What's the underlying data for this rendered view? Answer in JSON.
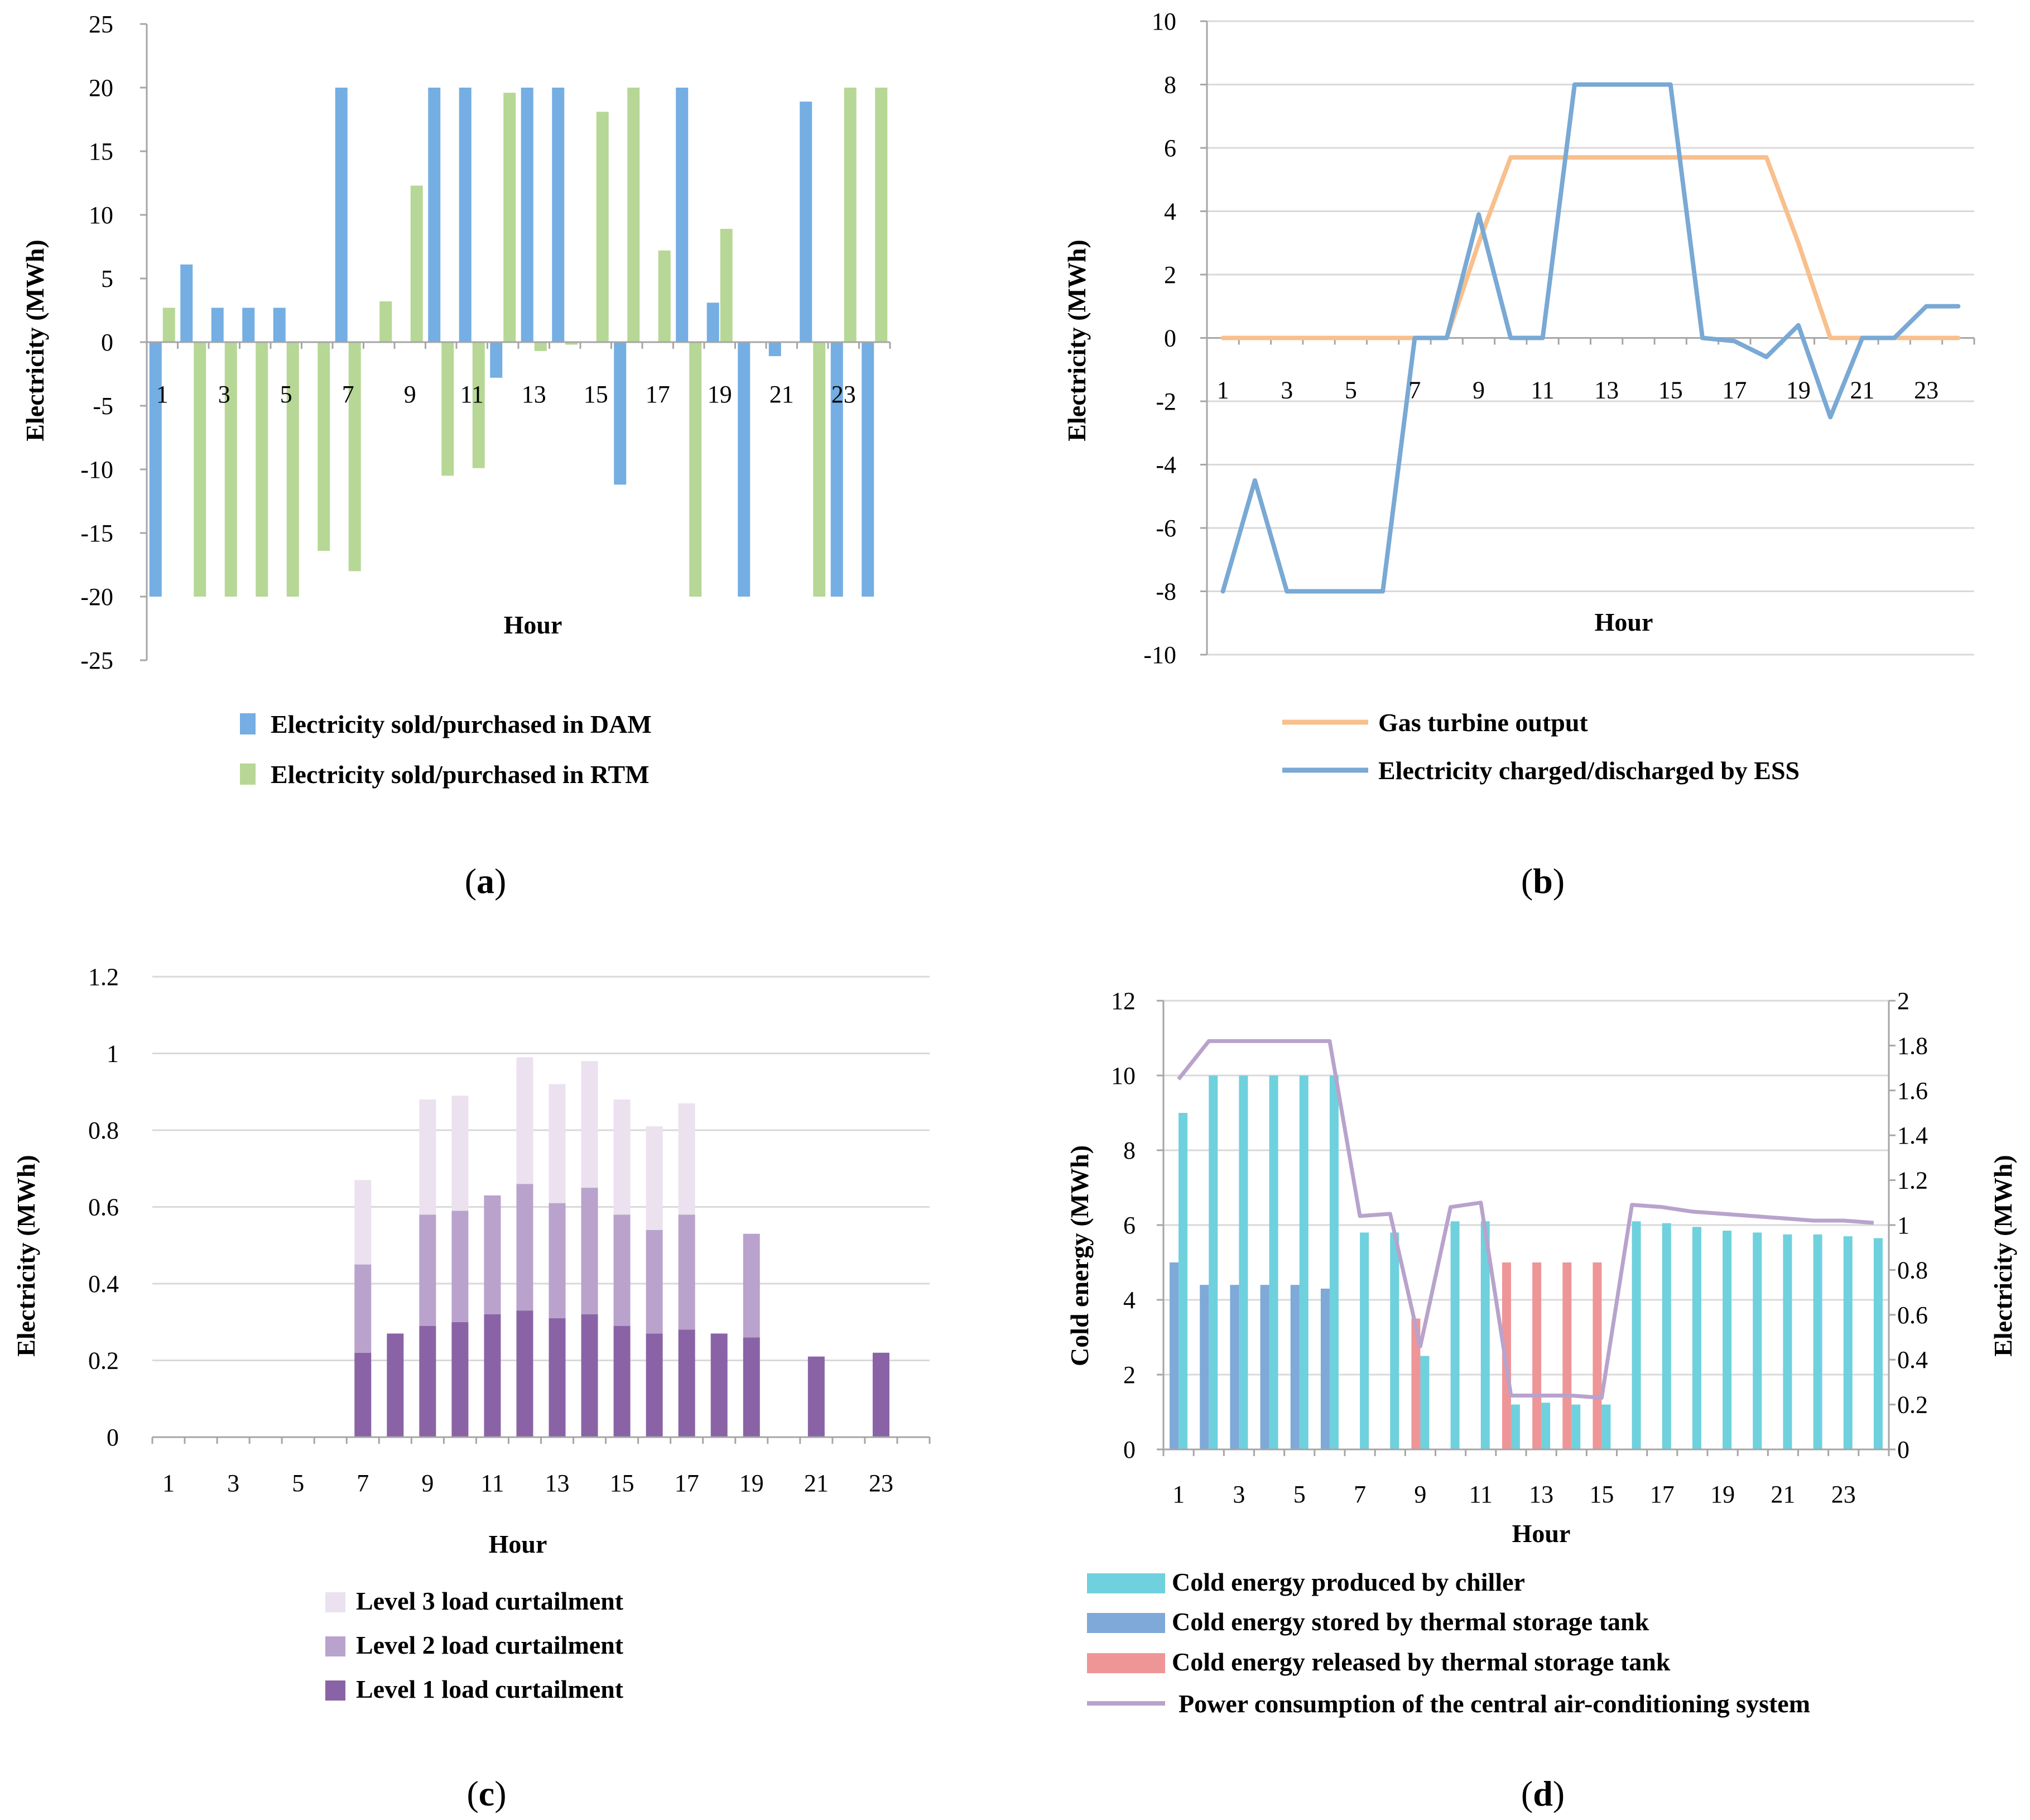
{
  "colors": {
    "dam": "#74aee3",
    "rtm": "#b7d796",
    "gas": "#f8c08d",
    "ess": "#79a9d4",
    "level3": "#ebe1ef",
    "level2": "#b9a2cc",
    "level1": "#8a63a6",
    "chiller": "#6fd1dd",
    "stored": "#7ea9d8",
    "released": "#ee9598",
    "power": "#b8a3cc",
    "axis": "#a6a6a6",
    "grid": "#d9d9d9"
  },
  "chart_data": [
    {
      "id": "a",
      "caption": "a",
      "type": "bar",
      "xlabel": "Hour",
      "ylabel": "Electricity (MWh)",
      "ylim": [
        -25,
        25
      ],
      "yticks": [
        "25",
        "20",
        "15",
        "10",
        "5",
        "0",
        "-5",
        "-10",
        "-15",
        "-20",
        "-25"
      ],
      "ytick_values": [
        25,
        20,
        15,
        10,
        5,
        0,
        -5,
        -10,
        -15,
        -20,
        -25
      ],
      "xtick_labels": [
        "1",
        "3",
        "5",
        "7",
        "9",
        "11",
        "13",
        "15",
        "17",
        "19",
        "21",
        "23"
      ],
      "xtick_hours": [
        1,
        3,
        5,
        7,
        9,
        11,
        13,
        15,
        17,
        19,
        21,
        23
      ],
      "categories": [
        "1",
        "2",
        "3",
        "4",
        "5",
        "6",
        "7",
        "8",
        "9",
        "10",
        "11",
        "12",
        "13",
        "14",
        "15",
        "16",
        "17",
        "18",
        "19",
        "20",
        "21",
        "22",
        "23",
        "24"
      ],
      "series": [
        {
          "name": "Electricity sold/purchased in DAM",
          "color": "dam",
          "values": [
            -20,
            6.1,
            2.7,
            2.7,
            2.7,
            0,
            20,
            0,
            0,
            20,
            20,
            -2.8,
            20,
            20,
            0,
            -11.2,
            0,
            20,
            3.1,
            -20,
            -1.1,
            18.9,
            -20,
            -20
          ]
        },
        {
          "name": "Electricity sold/purchased in RTM",
          "color": "rtm",
          "values": [
            2.7,
            -20,
            -20,
            -20,
            -20,
            -16.4,
            -18,
            3.2,
            12.3,
            -10.5,
            -9.9,
            19.6,
            -0.7,
            -0.2,
            18.1,
            20,
            7.2,
            -20,
            8.9,
            0,
            0,
            -20,
            20,
            20
          ]
        }
      ],
      "legend": [
        "Electricity sold/purchased in DAM",
        "Electricity sold/purchased in RTM"
      ]
    },
    {
      "id": "b",
      "caption": "b",
      "type": "line",
      "xlabel": "Hour",
      "ylabel": "Electricity (MWh)",
      "ylim": [
        -10,
        10
      ],
      "yticks": [
        "10",
        "8",
        "6",
        "4",
        "2",
        "0",
        "-2",
        "-4",
        "-6",
        "-8",
        "-10"
      ],
      "ytick_values": [
        10,
        8,
        6,
        4,
        2,
        0,
        -2,
        -4,
        -6,
        -8,
        -10
      ],
      "xtick_labels": [
        "1",
        "3",
        "5",
        "7",
        "9",
        "11",
        "13",
        "15",
        "17",
        "19",
        "21",
        "23"
      ],
      "xtick_hours": [
        1,
        3,
        5,
        7,
        9,
        11,
        13,
        15,
        17,
        19,
        21,
        23
      ],
      "x": [
        1,
        2,
        3,
        4,
        5,
        6,
        7,
        8,
        9,
        10,
        11,
        12,
        13,
        14,
        15,
        16,
        17,
        18,
        19,
        20,
        21,
        22,
        23,
        24
      ],
      "series": [
        {
          "name": "Gas turbine output",
          "color": "gas",
          "values": [
            0,
            0,
            0,
            0,
            0,
            0,
            0,
            0,
            3,
            5.7,
            5.7,
            5.7,
            5.7,
            5.7,
            5.7,
            5.7,
            5.7,
            5.7,
            3,
            0,
            0,
            0,
            0,
            0
          ]
        },
        {
          "name": "Electricity charged/discharged by ESS",
          "color": "ess",
          "values": [
            -8,
            -4.5,
            -8,
            -8,
            -8,
            -8,
            0,
            0,
            3.9,
            0,
            0,
            8,
            8,
            8,
            8,
            0,
            -0.1,
            -0.6,
            0.4,
            -2.5,
            0,
            0,
            1,
            1
          ]
        }
      ],
      "legend": [
        "Gas turbine output",
        "Electricity charged/discharged by ESS"
      ]
    },
    {
      "id": "c",
      "caption": "c",
      "type": "bar",
      "stacked": true,
      "xlabel": "Hour",
      "ylabel": "Electricity (MWh)",
      "ylim": [
        0,
        1.2
      ],
      "yticks": [
        "1.2",
        "1",
        "0.8",
        "0.6",
        "0.4",
        "0.2",
        "0"
      ],
      "ytick_values": [
        1.2,
        1,
        0.8,
        0.6,
        0.4,
        0.2,
        0
      ],
      "xtick_labels": [
        "1",
        "3",
        "5",
        "7",
        "9",
        "11",
        "13",
        "15",
        "17",
        "19",
        "21",
        "23"
      ],
      "xtick_hours": [
        1,
        3,
        5,
        7,
        9,
        11,
        13,
        15,
        17,
        19,
        21,
        23
      ],
      "categories": [
        "1",
        "2",
        "3",
        "4",
        "5",
        "6",
        "7",
        "8",
        "9",
        "10",
        "11",
        "12",
        "13",
        "14",
        "15",
        "16",
        "17",
        "18",
        "19",
        "20",
        "21",
        "22",
        "23",
        "24"
      ],
      "series": [
        {
          "name": "Level 1 load curtailment",
          "color": "level1",
          "values": [
            0,
            0,
            0,
            0,
            0,
            0,
            0.22,
            0.27,
            0.29,
            0.3,
            0.32,
            0.33,
            0.31,
            0.32,
            0.29,
            0.27,
            0.28,
            0.27,
            0.26,
            0,
            0.21,
            0,
            0.22,
            0
          ]
        },
        {
          "name": "Level 2 load curtailment",
          "color": "level2",
          "values": [
            0,
            0,
            0,
            0,
            0,
            0,
            0.23,
            0,
            0.29,
            0.29,
            0.31,
            0.33,
            0.3,
            0.33,
            0.29,
            0.27,
            0.3,
            0,
            0.27,
            0,
            0,
            0,
            0,
            0
          ]
        },
        {
          "name": "Level 3 load curtailment",
          "color": "level3",
          "values": [
            0,
            0,
            0,
            0,
            0,
            0,
            0.22,
            0,
            0.3,
            0.3,
            0,
            0.33,
            0.31,
            0.33,
            0.3,
            0.27,
            0.29,
            0,
            0,
            0,
            0,
            0,
            0,
            0
          ]
        }
      ],
      "legend": [
        "Level 3 load curtailment",
        "Level 2 load curtailment",
        "Level 1 load curtailment"
      ]
    },
    {
      "id": "d",
      "caption": "d",
      "type": "bar",
      "xlabel": "Hour",
      "ylabel": "Cold energy (MWh)",
      "ylabel_right": "Electricity (MWh)",
      "ylim": [
        0,
        12
      ],
      "ylim_right": [
        0,
        2
      ],
      "yticks": [
        "12",
        "10",
        "8",
        "6",
        "4",
        "2",
        "0"
      ],
      "ytick_values": [
        12,
        10,
        8,
        6,
        4,
        2,
        0
      ],
      "yticks_right": [
        "2",
        "1.8",
        "1.6",
        "1.4",
        "1.2",
        "1",
        "0.8",
        "0.6",
        "0.4",
        "0.2",
        "0"
      ],
      "ytick_values_right": [
        2,
        1.8,
        1.6,
        1.4,
        1.2,
        1,
        0.8,
        0.6,
        0.4,
        0.2,
        0
      ],
      "xtick_labels": [
        "1",
        "3",
        "5",
        "7",
        "9",
        "11",
        "13",
        "15",
        "17",
        "19",
        "21",
        "23"
      ],
      "xtick_hours": [
        1,
        3,
        5,
        7,
        9,
        11,
        13,
        15,
        17,
        19,
        21,
        23
      ],
      "categories": [
        "1",
        "2",
        "3",
        "4",
        "5",
        "6",
        "7",
        "8",
        "9",
        "10",
        "11",
        "12",
        "13",
        "14",
        "15",
        "16",
        "17",
        "18",
        "19",
        "20",
        "21",
        "22",
        "23",
        "24"
      ],
      "series": [
        {
          "name": "Cold energy produced by chiller",
          "color": "chiller",
          "kind": "bar",
          "values": [
            9,
            10,
            10,
            10,
            10,
            10,
            5.8,
            5.8,
            2.5,
            6.1,
            6.1,
            1.2,
            1.25,
            1.2,
            1.2,
            6.1,
            6.05,
            5.95,
            5.85,
            5.8,
            5.75,
            5.75,
            5.7,
            5.65
          ]
        },
        {
          "name": "Cold energy stored by thermal storage tank",
          "color": "stored",
          "kind": "bar",
          "values": [
            5,
            4.4,
            4.4,
            4.4,
            4.4,
            4.3,
            0,
            0,
            0,
            0,
            0,
            0,
            0,
            0,
            0,
            0,
            0,
            0,
            0,
            0,
            0,
            0,
            0,
            0
          ]
        },
        {
          "name": "Cold energy released by thermal storage tank",
          "color": "released",
          "kind": "bar",
          "values": [
            0,
            0,
            0,
            0,
            0,
            0,
            0,
            0,
            3.5,
            0,
            0,
            5,
            5,
            5,
            5,
            0,
            0,
            0,
            0,
            0,
            0,
            0,
            0,
            0
          ]
        },
        {
          "name": "Power consumption of the central air-conditioning system",
          "color": "power",
          "kind": "line",
          "axis": "right",
          "values": [
            1.65,
            1.82,
            1.82,
            1.82,
            1.82,
            1.82,
            1.04,
            1.05,
            0.46,
            1.08,
            1.1,
            0.24,
            0.24,
            0.24,
            0.23,
            1.09,
            1.08,
            1.06,
            1.05,
            1.04,
            1.03,
            1.02,
            1.02,
            1.01
          ]
        }
      ],
      "legend": [
        "Cold energy produced by chiller",
        "Cold energy stored by thermal storage tank",
        "Cold energy released by thermal storage tank",
        "Power consumption of the central air-conditioning system"
      ]
    }
  ]
}
